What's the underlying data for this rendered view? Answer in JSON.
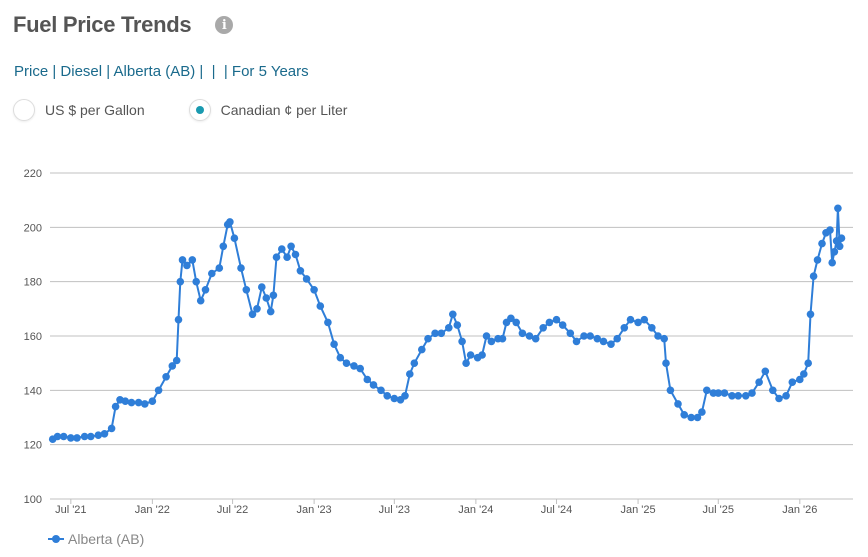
{
  "header": {
    "title": "Fuel Price Trends",
    "info_icon": "info-icon"
  },
  "breadcrumb": {
    "items": [
      "Price",
      "Diesel",
      "Alberta (AB)",
      "",
      "",
      "For 5 Years"
    ],
    "separator": " | "
  },
  "units": {
    "options": [
      {
        "label": "US $ per Gallon",
        "selected": false
      },
      {
        "label": "Canadian ¢ per Liter",
        "selected": true
      }
    ]
  },
  "colors": {
    "series": "#2f7ed8",
    "radio_selected": "#1a9ab0",
    "link": "#1a6a8c",
    "grid": "#c0c0c0"
  },
  "chart_data": {
    "type": "line",
    "xlabel": "",
    "ylabel": "",
    "ylim": [
      100,
      220
    ],
    "yticks": [
      100,
      120,
      140,
      160,
      180,
      200,
      220
    ],
    "xlim": [
      "2021-05-15",
      "2026-05-01"
    ],
    "xticks": [
      {
        "date": "2021-07-01",
        "label": "Jul '21"
      },
      {
        "date": "2022-01-01",
        "label": "Jan '22"
      },
      {
        "date": "2022-07-01",
        "label": "Jul '22"
      },
      {
        "date": "2023-01-01",
        "label": "Jan '23"
      },
      {
        "date": "2023-07-01",
        "label": "Jul '23"
      },
      {
        "date": "2024-01-01",
        "label": "Jan '24"
      },
      {
        "date": "2024-07-01",
        "label": "Jul '24"
      },
      {
        "date": "2025-01-01",
        "label": "Jan '25"
      },
      {
        "date": "2025-07-01",
        "label": "Jul '25"
      },
      {
        "date": "2026-01-01",
        "label": "Jan '26"
      }
    ],
    "grid": true,
    "legend_position": "bottom-left",
    "series": [
      {
        "name": "Alberta (AB)",
        "points": [
          [
            "2021-05-21",
            122
          ],
          [
            "2021-06-01",
            123
          ],
          [
            "2021-06-15",
            123
          ],
          [
            "2021-07-01",
            122.5
          ],
          [
            "2021-07-15",
            122.5
          ],
          [
            "2021-08-01",
            123
          ],
          [
            "2021-08-15",
            123
          ],
          [
            "2021-09-01",
            123.5
          ],
          [
            "2021-09-15",
            124
          ],
          [
            "2021-10-01",
            126
          ],
          [
            "2021-10-10",
            134
          ],
          [
            "2021-10-20",
            136.5
          ],
          [
            "2021-11-01",
            136
          ],
          [
            "2021-11-15",
            135.5
          ],
          [
            "2021-12-01",
            135.5
          ],
          [
            "2021-12-15",
            135
          ],
          [
            "2022-01-01",
            136
          ],
          [
            "2022-01-15",
            140
          ],
          [
            "2022-02-01",
            145
          ],
          [
            "2022-02-15",
            149
          ],
          [
            "2022-02-25",
            151
          ],
          [
            "2022-03-01",
            166
          ],
          [
            "2022-03-05",
            180
          ],
          [
            "2022-03-10",
            188
          ],
          [
            "2022-03-20",
            186
          ],
          [
            "2022-04-01",
            188
          ],
          [
            "2022-04-10",
            180
          ],
          [
            "2022-04-20",
            173
          ],
          [
            "2022-05-01",
            177
          ],
          [
            "2022-05-15",
            183
          ],
          [
            "2022-06-01",
            185
          ],
          [
            "2022-06-10",
            193
          ],
          [
            "2022-06-20",
            201
          ],
          [
            "2022-06-25",
            202
          ],
          [
            "2022-07-05",
            196
          ],
          [
            "2022-07-20",
            185
          ],
          [
            "2022-08-01",
            177
          ],
          [
            "2022-08-15",
            168
          ],
          [
            "2022-08-25",
            170
          ],
          [
            "2022-09-05",
            178
          ],
          [
            "2022-09-15",
            174
          ],
          [
            "2022-09-25",
            169
          ],
          [
            "2022-10-01",
            175
          ],
          [
            "2022-10-08",
            189
          ],
          [
            "2022-10-20",
            192
          ],
          [
            "2022-11-01",
            189
          ],
          [
            "2022-11-10",
            193
          ],
          [
            "2022-11-20",
            190
          ],
          [
            "2022-12-01",
            184
          ],
          [
            "2022-12-15",
            181
          ],
          [
            "2023-01-01",
            177
          ],
          [
            "2023-01-15",
            171
          ],
          [
            "2023-02-01",
            165
          ],
          [
            "2023-02-15",
            157
          ],
          [
            "2023-03-01",
            152
          ],
          [
            "2023-03-15",
            150
          ],
          [
            "2023-04-01",
            149
          ],
          [
            "2023-04-15",
            148
          ],
          [
            "2023-05-01",
            144
          ],
          [
            "2023-05-15",
            142
          ],
          [
            "2023-06-01",
            140
          ],
          [
            "2023-06-15",
            138
          ],
          [
            "2023-07-01",
            137
          ],
          [
            "2023-07-15",
            136.5
          ],
          [
            "2023-07-25",
            138
          ],
          [
            "2023-08-05",
            146
          ],
          [
            "2023-08-15",
            150
          ],
          [
            "2023-09-01",
            155
          ],
          [
            "2023-09-15",
            159
          ],
          [
            "2023-10-01",
            161
          ],
          [
            "2023-10-15",
            161
          ],
          [
            "2023-11-01",
            163
          ],
          [
            "2023-11-10",
            168
          ],
          [
            "2023-11-20",
            164
          ],
          [
            "2023-12-01",
            158
          ],
          [
            "2023-12-10",
            150
          ],
          [
            "2023-12-20",
            153
          ],
          [
            "2024-01-05",
            152
          ],
          [
            "2024-01-15",
            153
          ],
          [
            "2024-01-25",
            160
          ],
          [
            "2024-02-05",
            158
          ],
          [
            "2024-02-20",
            159
          ],
          [
            "2024-03-01",
            159
          ],
          [
            "2024-03-10",
            165
          ],
          [
            "2024-03-20",
            166.5
          ],
          [
            "2024-04-01",
            165
          ],
          [
            "2024-04-15",
            161
          ],
          [
            "2024-05-01",
            160
          ],
          [
            "2024-05-15",
            159
          ],
          [
            "2024-06-01",
            163
          ],
          [
            "2024-06-15",
            165
          ],
          [
            "2024-07-01",
            166
          ],
          [
            "2024-07-15",
            164
          ],
          [
            "2024-08-01",
            161
          ],
          [
            "2024-08-15",
            158
          ],
          [
            "2024-09-01",
            160
          ],
          [
            "2024-09-15",
            160
          ],
          [
            "2024-10-01",
            159
          ],
          [
            "2024-10-15",
            158
          ],
          [
            "2024-11-01",
            157
          ],
          [
            "2024-11-15",
            159
          ],
          [
            "2024-12-01",
            163
          ],
          [
            "2024-12-15",
            166
          ],
          [
            "2025-01-01",
            165
          ],
          [
            "2025-01-15",
            166
          ],
          [
            "2025-02-01",
            163
          ],
          [
            "2025-02-15",
            160
          ],
          [
            "2025-03-01",
            159
          ],
          [
            "2025-03-05",
            150
          ],
          [
            "2025-03-15",
            140
          ],
          [
            "2025-04-01",
            135
          ],
          [
            "2025-04-15",
            131
          ],
          [
            "2025-05-01",
            130
          ],
          [
            "2025-05-15",
            130
          ],
          [
            "2025-05-25",
            132
          ],
          [
            "2025-06-05",
            140
          ],
          [
            "2025-06-20",
            139
          ],
          [
            "2025-07-01",
            139
          ],
          [
            "2025-07-15",
            139
          ],
          [
            "2025-08-01",
            138
          ],
          [
            "2025-08-15",
            138
          ],
          [
            "2025-09-01",
            138
          ],
          [
            "2025-09-15",
            139
          ],
          [
            "2025-10-01",
            143
          ],
          [
            "2025-10-15",
            147
          ],
          [
            "2025-11-01",
            140
          ],
          [
            "2025-11-15",
            137
          ],
          [
            "2025-12-01",
            138
          ],
          [
            "2025-12-15",
            143
          ],
          [
            "2026-01-01",
            144
          ],
          [
            "2026-01-10",
            146
          ],
          [
            "2026-01-20",
            150
          ],
          [
            "2026-01-25",
            168
          ],
          [
            "2026-02-01",
            182
          ],
          [
            "2026-02-10",
            188
          ],
          [
            "2026-02-20",
            194
          ],
          [
            "2026-03-01",
            198
          ],
          [
            "2026-03-10",
            199
          ],
          [
            "2026-03-15",
            187
          ],
          [
            "2026-03-20",
            191
          ],
          [
            "2026-03-25",
            195
          ],
          [
            "2026-03-28",
            207
          ],
          [
            "2026-04-01",
            193
          ],
          [
            "2026-04-05",
            196
          ]
        ]
      }
    ]
  },
  "legend": {
    "label": "Alberta (AB)"
  }
}
